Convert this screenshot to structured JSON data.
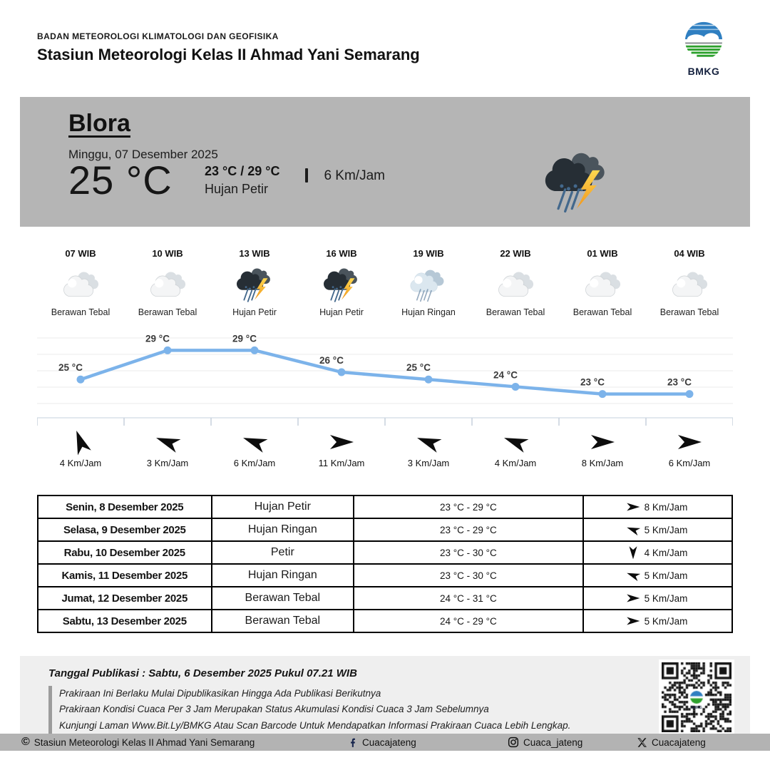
{
  "header": {
    "agency": "BADAN METEOROLOGI KLIMATOLOGI DAN GEOFISIKA",
    "station": "Stasiun Meteorologi Kelas II Ahmad Yani Semarang",
    "logo_label": "BMKG"
  },
  "current": {
    "location": "Blora",
    "date": "Minggu, 07 Desember 2025",
    "temperature": "25 °C",
    "temp_range": "23 °C / 29 °C",
    "condition": "Hujan Petir",
    "wind": "6 Km/Jam",
    "icon": "hujan-petir"
  },
  "hourly": [
    {
      "time": "07 WIB",
      "icon": "berawan-tebal",
      "condition": "Berawan Tebal"
    },
    {
      "time": "10 WIB",
      "icon": "berawan-tebal",
      "condition": "Berawan Tebal"
    },
    {
      "time": "13 WIB",
      "icon": "hujan-petir",
      "condition": "Hujan Petir"
    },
    {
      "time": "16 WIB",
      "icon": "hujan-petir",
      "condition": "Hujan Petir"
    },
    {
      "time": "19 WIB",
      "icon": "hujan-ringan",
      "condition": "Hujan Ringan"
    },
    {
      "time": "22 WIB",
      "icon": "berawan-tebal",
      "condition": "Berawan Tebal"
    },
    {
      "time": "01 WIB",
      "icon": "berawan-tebal",
      "condition": "Berawan Tebal"
    },
    {
      "time": "04 WIB",
      "icon": "berawan-tebal",
      "condition": "Berawan Tebal"
    }
  ],
  "chart_data": {
    "type": "line",
    "x": [
      "07 WIB",
      "10 WIB",
      "13 WIB",
      "16 WIB",
      "19 WIB",
      "22 WIB",
      "01 WIB",
      "04 WIB"
    ],
    "values": [
      25,
      29,
      29,
      26,
      25,
      24,
      23,
      23
    ],
    "labels": [
      "25 °C",
      "29 °C",
      "29 °C",
      "26 °C",
      "25 °C",
      "24 °C",
      "23 °C",
      "23 °C"
    ],
    "unit": "°C",
    "ylim": [
      21.5,
      30.5
    ],
    "grid": true,
    "line_color": "#7cb3ea",
    "grid_color": "#ebebeb",
    "axis_color": "#d9e0e8"
  },
  "wind_hourly": [
    {
      "speed": "4 Km/Jam",
      "dir_deg": -110
    },
    {
      "speed": "3 Km/Jam",
      "dir_deg": -160
    },
    {
      "speed": "6 Km/Jam",
      "dir_deg": -160
    },
    {
      "speed": "11 Km/Jam",
      "dir_deg": 0
    },
    {
      "speed": "3 Km/Jam",
      "dir_deg": -160
    },
    {
      "speed": "4 Km/Jam",
      "dir_deg": -160
    },
    {
      "speed": "8 Km/Jam",
      "dir_deg": 0
    },
    {
      "speed": "6 Km/Jam",
      "dir_deg": 0
    }
  ],
  "daily_table": {
    "rows": [
      {
        "date": "Senin, 8 Desember 2025",
        "condition": "Hujan Petir",
        "temp": "23 °C - 29 °C",
        "wind": "8 Km/Jam",
        "dir_deg": 0
      },
      {
        "date": "Selasa, 9 Desember 2025",
        "condition": "Hujan Ringan",
        "temp": "23 °C - 29 °C",
        "wind": "5 Km/Jam",
        "dir_deg": -160
      },
      {
        "date": "Rabu, 10 Desember 2025",
        "condition": "Petir",
        "temp": "23 °C - 30 °C",
        "wind": "4 Km/Jam",
        "dir_deg": 90
      },
      {
        "date": "Kamis, 11 Desember 2025",
        "condition": "Hujan Ringan",
        "temp": "23 °C - 30 °C",
        "wind": "5 Km/Jam",
        "dir_deg": -160
      },
      {
        "date": "Jumat, 12 Desember 2025",
        "condition": "Berawan Tebal",
        "temp": "24 °C - 31 °C",
        "wind": "5 Km/Jam",
        "dir_deg": 0
      },
      {
        "date": "Sabtu, 13 Desember 2025",
        "condition": "Berawan Tebal",
        "temp": "24 °C - 29 °C",
        "wind": "5 Km/Jam",
        "dir_deg": 0
      }
    ]
  },
  "footer": {
    "publication": "Tanggal Publikasi : Sabtu, 6 Desember 2025 Pukul 07.21 WIB",
    "notes": [
      "Prakiraan Ini Berlaku Mulai Dipublikasikan Hingga Ada Publikasi Berikutnya",
      "Prakiraan Kondisi Cuaca Per 3 Jam Merupakan Status Akumulasi Kondisi Cuaca 3 Jam Sebelumnya",
      "Kunjungi Laman Www.Bit.Ly/BMKG Atau Scan Barcode Untuk Mendapatkan Informasi Prakiraan Cuaca Lebih Lengkap."
    ]
  },
  "bottom_bar": {
    "copyright_symbol": "©",
    "copyright": "Stasiun Meteorologi Kelas II Ahmad Yani Semarang",
    "facebook": "Cuacajateng",
    "instagram": "Cuaca_jateng",
    "twitter": "Cuacajateng"
  },
  "colors": {
    "banner": "#b5b5b5",
    "bottom_bar": "#b3b3b3",
    "footer_bg": "#efefef",
    "chart_line": "#7cb3ea",
    "lightning": "#f8b02c",
    "rain": "#43688c"
  }
}
